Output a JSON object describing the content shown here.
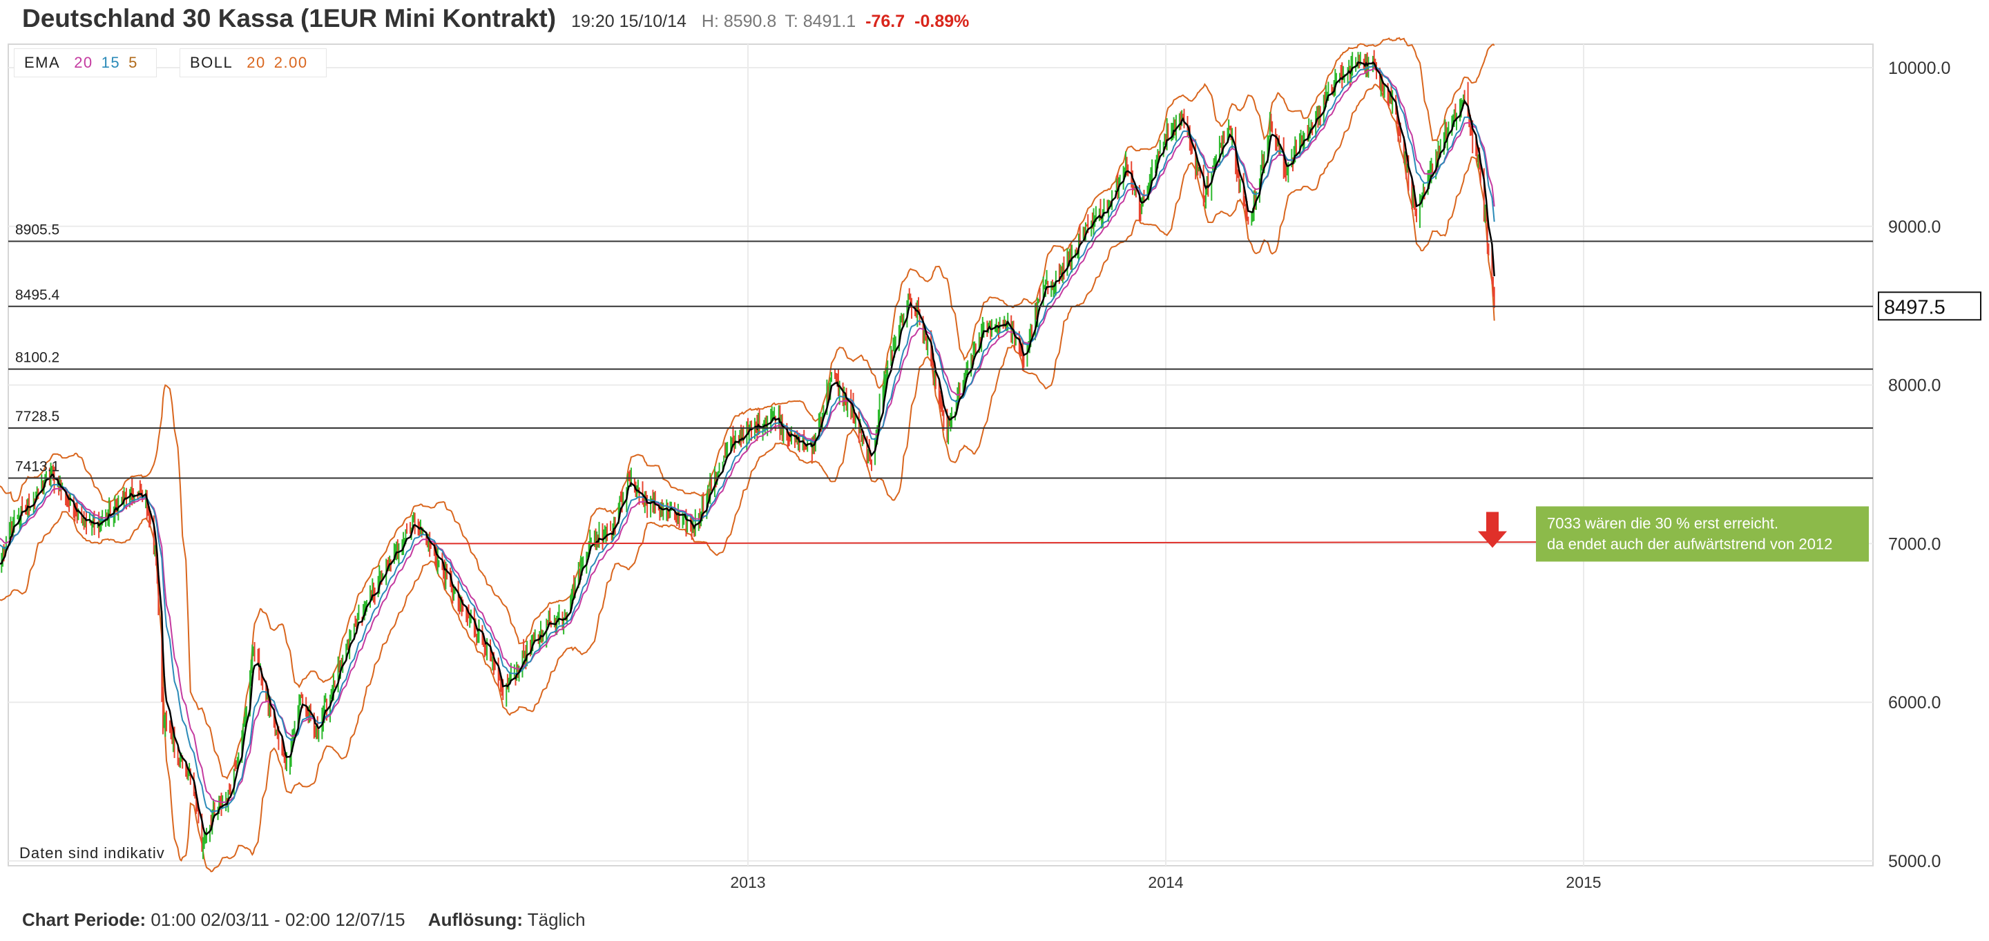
{
  "header": {
    "title": "Deutschland 30 Kassa (1EUR Mini Kontrakt)",
    "time": "19:20 15/10/14",
    "high": "H: 8590.8",
    "low": "T: 8491.1",
    "change": "-76.7",
    "change_pct": "-0.89%"
  },
  "legend": {
    "ema_label": "EMA",
    "ema_values": [
      "20",
      "15",
      "5"
    ],
    "boll_label": "BOLL",
    "boll_values": [
      "20",
      "2.00"
    ]
  },
  "footer": {
    "period_label": "Chart Periode:",
    "period_value": "01:00 02/03/11 - 02:00 12/07/15",
    "resolution_label": "Auflösung:",
    "resolution_value": "Täglich"
  },
  "colors": {
    "up": "#2db92d",
    "down": "#e8432e",
    "boll": "#d9661e",
    "ema20": "#c43aa0",
    "ema15": "#2a8ab8",
    "ema5": "#000000",
    "note_bg": "#8cba4a",
    "level_line": "#333333",
    "trend_line": "#e0302a"
  },
  "chart_data": {
    "type": "candlestick",
    "y_ticks": [
      "10000.0",
      "9000.0",
      "8000.0",
      "7000.0",
      "6000.0",
      "5000.0"
    ],
    "ylim": [
      5000,
      10000
    ],
    "x_ticks": [
      "2013",
      "2014",
      "2015"
    ],
    "current_price": "8497.5",
    "levels": [
      {
        "label": "8905.5",
        "value": 8905.5
      },
      {
        "label": "8495.4",
        "value": 8495.4
      },
      {
        "label": "8100.2",
        "value": 8100.2
      },
      {
        "label": "7728.5",
        "value": 7728.5
      },
      {
        "label": "7413.1",
        "value": 7413.1
      }
    ],
    "trend_line": {
      "from": [
        "2012-04",
        7000
      ],
      "to": [
        "2014-12",
        7010
      ]
    },
    "watermark": "Daten sind indikativ",
    "annotation": [
      "7033 wären die 30 % erst erreicht.",
      "da endet auch der aufwärtstrend von 2012"
    ],
    "price_path": [
      [
        "2011-03-02",
        7250
      ],
      [
        "2011-03-16",
        6800
      ],
      [
        "2011-04-01",
        7150
      ],
      [
        "2011-04-20",
        7300
      ],
      [
        "2011-05-02",
        7450
      ],
      [
        "2011-05-20",
        7250
      ],
      [
        "2011-06-10",
        7100
      ],
      [
        "2011-06-25",
        7200
      ],
      [
        "2011-07-08",
        7300
      ],
      [
        "2011-07-25",
        7300
      ],
      [
        "2011-08-03",
        6900
      ],
      [
        "2011-08-09",
        5900
      ],
      [
        "2011-08-20",
        5700
      ],
      [
        "2011-09-05",
        5450
      ],
      [
        "2011-09-12",
        5100
      ],
      [
        "2011-09-22",
        5300
      ],
      [
        "2011-10-05",
        5400
      ],
      [
        "2011-10-20",
        5900
      ],
      [
        "2011-10-27",
        6350
      ],
      [
        "2011-11-10",
        5950
      ],
      [
        "2011-11-25",
        5600
      ],
      [
        "2011-12-08",
        6050
      ],
      [
        "2011-12-20",
        5800
      ],
      [
        "2012-01-05",
        6100
      ],
      [
        "2012-01-25",
        6500
      ],
      [
        "2012-02-20",
        6850
      ],
      [
        "2012-03-16",
        7150
      ],
      [
        "2012-04-05",
        6900
      ],
      [
        "2012-04-25",
        6600
      ],
      [
        "2012-05-15",
        6400
      ],
      [
        "2012-06-01",
        6050
      ],
      [
        "2012-06-20",
        6300
      ],
      [
        "2012-07-10",
        6500
      ],
      [
        "2012-07-25",
        6550
      ],
      [
        "2012-08-15",
        7000
      ],
      [
        "2012-09-05",
        7100
      ],
      [
        "2012-09-18",
        7400
      ],
      [
        "2012-10-05",
        7250
      ],
      [
        "2012-10-25",
        7200
      ],
      [
        "2012-11-15",
        7100
      ],
      [
        "2012-12-05",
        7450
      ],
      [
        "2012-12-20",
        7650
      ],
      [
        "2013-01-10",
        7750
      ],
      [
        "2013-01-25",
        7800
      ],
      [
        "2013-02-10",
        7650
      ],
      [
        "2013-02-26",
        7600
      ],
      [
        "2013-03-15",
        8050
      ],
      [
        "2013-04-01",
        7850
      ],
      [
        "2013-04-18",
        7500
      ],
      [
        "2013-05-02",
        8100
      ],
      [
        "2013-05-22",
        8550
      ],
      [
        "2013-06-05",
        8300
      ],
      [
        "2013-06-24",
        7700
      ],
      [
        "2013-07-10",
        8050
      ],
      [
        "2013-07-25",
        8350
      ],
      [
        "2013-08-15",
        8400
      ],
      [
        "2013-08-30",
        8150
      ],
      [
        "2013-09-15",
        8600
      ],
      [
        "2013-10-01",
        8700
      ],
      [
        "2013-10-22",
        8950
      ],
      [
        "2013-11-12",
        9150
      ],
      [
        "2013-11-28",
        9400
      ],
      [
        "2013-12-10",
        9100
      ],
      [
        "2013-12-30",
        9550
      ],
      [
        "2014-01-15",
        9700
      ],
      [
        "2014-02-04",
        9200
      ],
      [
        "2014-02-25",
        9650
      ],
      [
        "2014-03-14",
        9000
      ],
      [
        "2014-04-03",
        9650
      ],
      [
        "2014-04-15",
        9350
      ],
      [
        "2014-05-05",
        9600
      ],
      [
        "2014-05-28",
        9900
      ],
      [
        "2014-06-20",
        10050
      ],
      [
        "2014-07-03",
        10000
      ],
      [
        "2014-07-20",
        9750
      ],
      [
        "2014-08-08",
        9050
      ],
      [
        "2014-08-28",
        9500
      ],
      [
        "2014-09-19",
        9800
      ],
      [
        "2014-10-01",
        9400
      ],
      [
        "2014-10-08",
        9000
      ],
      [
        "2014-10-15",
        8500
      ]
    ]
  }
}
